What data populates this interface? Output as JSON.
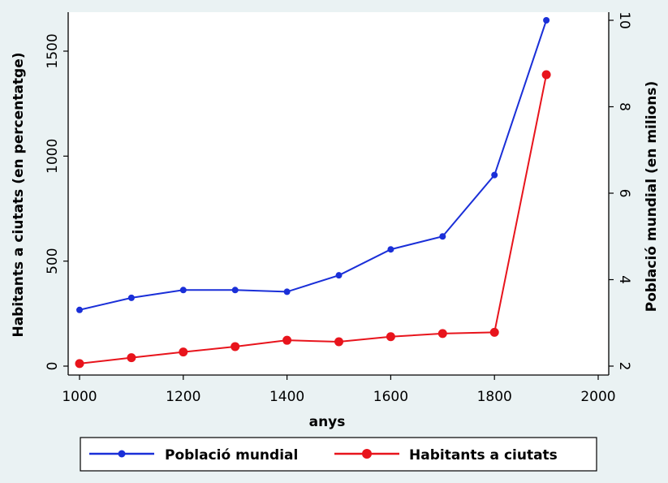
{
  "chart_data": {
    "type": "line",
    "xlabel": "anys",
    "ylabel_left": "Habitants a ciutats (en percentatge)",
    "ylabel_right": "Població mundial (en milions)",
    "xlim": [
      1000,
      2000
    ],
    "ylim_left": [
      0,
      1500
    ],
    "ylim_right": [
      2,
      10
    ],
    "x_ticks": [
      "1000",
      "1200",
      "1400",
      "1600",
      "1800",
      "2000"
    ],
    "y_ticks_left": [
      "0",
      "500",
      "1000",
      "1500"
    ],
    "y_ticks_right": [
      "2",
      "4",
      "6",
      "8",
      "10"
    ],
    "grid": false,
    "legend_position": "bottom",
    "x": [
      1000,
      1100,
      1200,
      1300,
      1400,
      1500,
      1600,
      1700,
      1800,
      1900
    ],
    "series": [
      {
        "name": "Població mundial",
        "axis": "right",
        "color": "#1a2fd8",
        "values": [
          3.3,
          3.58,
          3.76,
          3.76,
          3.72,
          4.1,
          4.7,
          5.0,
          6.42,
          10.0
        ]
      },
      {
        "name": "Habitants a ciutats",
        "axis": "left",
        "color": "#e8141c",
        "values": [
          12,
          40,
          67,
          93,
          123,
          116,
          140,
          155,
          161,
          1388
        ]
      }
    ]
  }
}
